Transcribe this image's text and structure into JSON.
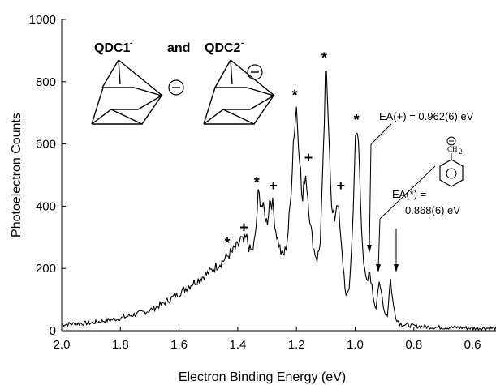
{
  "chart_data": {
    "type": "line",
    "xlabel": "Electron Binding Energy (eV)",
    "ylabel": "Photoelectron Counts",
    "xlim": [
      2.0,
      0.52
    ],
    "ylim": [
      0,
      1000
    ],
    "x_reversed": true,
    "x_ticks": [
      2.0,
      1.8,
      1.6,
      1.4,
      1.2,
      1.0,
      0.8,
      0.6
    ],
    "x_tick_labels": [
      "2.0",
      "1.8",
      "1.6",
      "1.4",
      "1.2",
      "1.0",
      "0.8",
      "0.6"
    ],
    "y_ticks": [
      0,
      200,
      400,
      600,
      800,
      1000
    ],
    "y_tick_labels": [
      "0",
      "200",
      "400",
      "600",
      "800",
      "1000"
    ],
    "grid": false,
    "series": [
      {
        "x": [
          2.0,
          1.9,
          1.8,
          1.7,
          1.65,
          1.6,
          1.55,
          1.5,
          1.47,
          1.45,
          1.44,
          1.43,
          1.42,
          1.41,
          1.4,
          1.39,
          1.38,
          1.37,
          1.36,
          1.35,
          1.34,
          1.33,
          1.32,
          1.31,
          1.3,
          1.29,
          1.28,
          1.27,
          1.26,
          1.25,
          1.24,
          1.23,
          1.22,
          1.21,
          1.2,
          1.19,
          1.18,
          1.17,
          1.16,
          1.15,
          1.14,
          1.13,
          1.12,
          1.11,
          1.1,
          1.09,
          1.08,
          1.07,
          1.06,
          1.05,
          1.04,
          1.03,
          1.02,
          1.01,
          1.0,
          0.99,
          0.98,
          0.97,
          0.96,
          0.95,
          0.94,
          0.93,
          0.92,
          0.91,
          0.9,
          0.89,
          0.88,
          0.87,
          0.86,
          0.85,
          0.84,
          0.8,
          0.75,
          0.7,
          0.65,
          0.6,
          0.55,
          0.52
        ],
        "y": [
          20,
          25,
          40,
          65,
          90,
          120,
          155,
          185,
          210,
          225,
          235,
          245,
          250,
          265,
          270,
          295,
          280,
          300,
          260,
          255,
          300,
          440,
          410,
          380,
          345,
          430,
          400,
          320,
          280,
          240,
          250,
          300,
          420,
          620,
          720,
          580,
          400,
          520,
          420,
          320,
          260,
          230,
          270,
          500,
          840,
          680,
          380,
          360,
          430,
          300,
          200,
          100,
          140,
          300,
          600,
          640,
          380,
          200,
          150,
          190,
          120,
          70,
          150,
          120,
          60,
          50,
          170,
          80,
          40,
          25,
          20,
          15,
          12,
          10,
          10,
          8,
          8,
          8
        ]
      }
    ],
    "peak_markers": [
      {
        "x": 1.43,
        "y": 245,
        "label": "*"
      },
      {
        "x": 1.39,
        "y": 295,
        "label": "+"
      },
      {
        "x": 1.33,
        "y": 440,
        "label": "*"
      },
      {
        "x": 1.29,
        "y": 430,
        "label": "+"
      },
      {
        "x": 1.2,
        "y": 720,
        "label": "*"
      },
      {
        "x": 1.17,
        "y": 520,
        "label": "+"
      },
      {
        "x": 1.1,
        "y": 840,
        "label": "*"
      },
      {
        "x": 1.06,
        "y": 430,
        "label": "+"
      },
      {
        "x": 0.99,
        "y": 640,
        "label": "*"
      }
    ],
    "annotations": {
      "title_part1": "QDC1",
      "title_sup1": "-",
      "title_and": "and",
      "title_part2": "QDC2",
      "title_sup2": "-",
      "ea_plus": "EA(+) = 0.962(6) eV",
      "ea_star_line1": "EA(*) =",
      "ea_star_line2": "0.868(6) eV",
      "ch2": "CH",
      "ch2_sub": "2",
      "anion_symbol": "⊖"
    }
  }
}
